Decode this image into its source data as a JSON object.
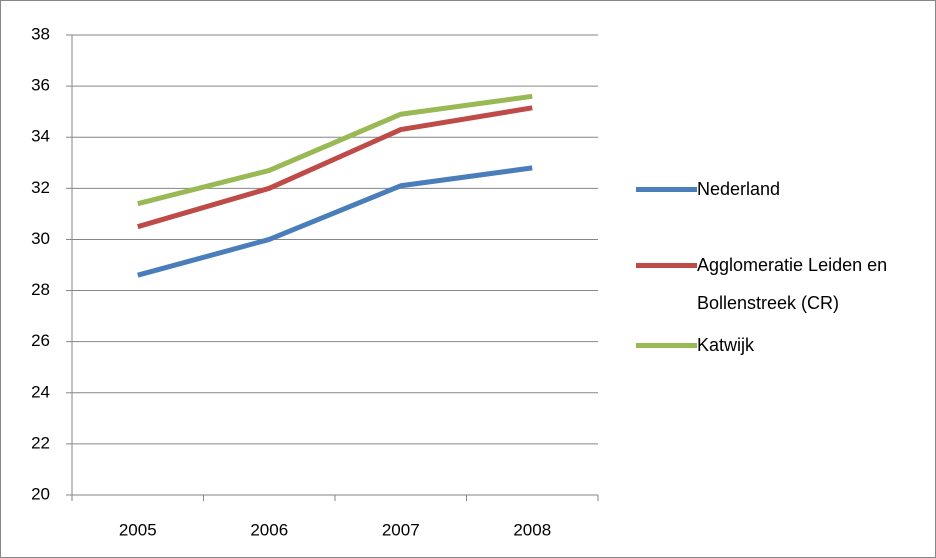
{
  "chart_data": {
    "type": "line",
    "categories": [
      "2005",
      "2006",
      "2007",
      "2008"
    ],
    "series": [
      {
        "name": "Nederland",
        "color": "#4a7ebb",
        "values": [
          28.6,
          30.0,
          32.1,
          32.8
        ]
      },
      {
        "name": "Agglomeratie Leiden en Bollenstreek (CR)",
        "color": "#be4b48",
        "values": [
          30.5,
          32.0,
          34.3,
          35.15
        ]
      },
      {
        "name": "Katwijk",
        "color": "#98b954",
        "values": [
          31.4,
          32.7,
          34.9,
          35.6
        ]
      }
    ],
    "ylim": [
      20,
      38
    ],
    "yticks": [
      20,
      22,
      24,
      26,
      28,
      30,
      32,
      34,
      36,
      38
    ],
    "grid": true,
    "legend": "right"
  }
}
